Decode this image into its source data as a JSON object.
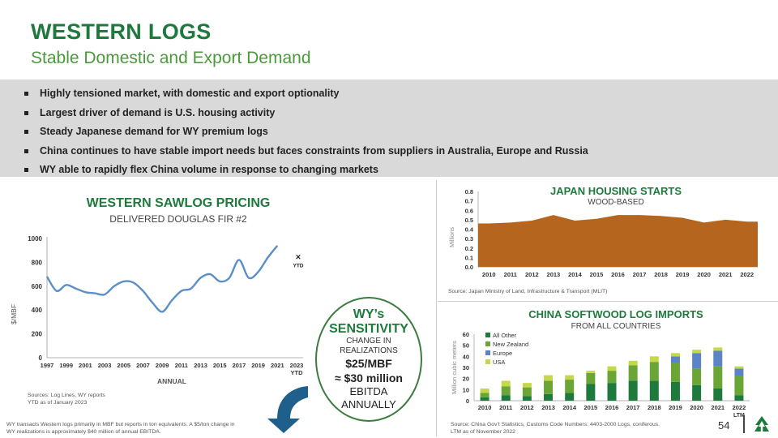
{
  "header": {
    "title": "WESTERN LOGS",
    "subtitle": "Stable Domestic and Export Demand"
  },
  "bullets": [
    "Highly tensioned market, with domestic and export optionality",
    "Largest driver of demand is U.S. housing activity",
    "Steady Japanese demand for WY premium logs",
    "China continues to have stable import needs but faces constraints from suppliers in Australia, Europe and Russia",
    "WY able to rapidly flex China volume in response to changing markets"
  ],
  "sawlog": {
    "title": "WESTERN SAWLOG PRICING",
    "subtitle": "DELIVERED DOUGLAS FIR #2",
    "ytd_marker": "×",
    "ytd_label": "YTD",
    "sources": "Sources: Log Lines, WY reports",
    "ytd_note": "YTD as of January 2023"
  },
  "sensitivity": {
    "line1": "WY’s",
    "line2": "SENSITIVITY",
    "line3": "CHANGE IN REALIZATIONS",
    "line4": "$25/MBF",
    "line5": "≈ $30 million",
    "line6": "EBITDA",
    "line7": "ANNUALLY"
  },
  "japan": {
    "title": "JAPAN HOUSING STARTS",
    "subtitle": "WOOD-BASED",
    "source": "Source: Japan Ministry of Land, Infrastructure & Transport (MLIT)"
  },
  "china": {
    "title": "CHINA SOFTWOOD LOG IMPORTS",
    "subtitle": "FROM ALL COUNTRIES",
    "source_line1": "Source: China Gov’t Statistics, Customs Code Numbers: 4403-2000 Logs, coniferous.",
    "source_line2": "LTM as of November 2022"
  },
  "footnote": {
    "line1": "WY transacts Western logs primarily in MBF but reports in ton equivalents. A $5/ton change in",
    "line2": "WY realizations is approximately $40 million of annual EBITDA."
  },
  "page": {
    "number": "54"
  },
  "colors": {
    "green": "#1e7a3c",
    "line_blue": "#5b8fc9",
    "japan_fill": "#b5651d",
    "all_other": "#1e7a3c",
    "new_zealand": "#6aa535",
    "europe": "#5b84c4",
    "usa": "#c5d84b"
  },
  "chart_data": [
    {
      "type": "line",
      "title": "WESTERN SAWLOG PRICING",
      "subtitle": "DELIVERED DOUGLAS FIR #2",
      "xlabel": "ANNUAL",
      "ylabel": "$/MBF",
      "ylim": [
        0,
        1000
      ],
      "yticks": [
        0,
        200,
        400,
        600,
        800,
        1000
      ],
      "xtick_labels": [
        "1997",
        "1999",
        "2001",
        "2003",
        "2005",
        "2007",
        "2009",
        "2011",
        "2013",
        "2015",
        "2017",
        "2019",
        "2021",
        "2023"
      ],
      "xtick_sub": "YTD",
      "x": [
        1997,
        1998,
        1999,
        2000,
        2001,
        2002,
        2003,
        2004,
        2005,
        2006,
        2007,
        2008,
        2009,
        2010,
        2011,
        2012,
        2013,
        2014,
        2015,
        2016,
        2017,
        2018,
        2019,
        2020,
        2021,
        2022
      ],
      "values": [
        680,
        560,
        610,
        580,
        550,
        540,
        530,
        600,
        640,
        630,
        560,
        460,
        385,
        480,
        560,
        580,
        670,
        700,
        640,
        670,
        820,
        670,
        720,
        840,
        940,
        null
      ],
      "ytd_point": {
        "x": 2023,
        "y": 840
      }
    },
    {
      "type": "area",
      "title": "JAPAN HOUSING STARTS",
      "subtitle": "WOOD-BASED",
      "ylabel": "Millions",
      "ylim": [
        0,
        0.8
      ],
      "yticks": [
        0.0,
        0.1,
        0.2,
        0.3,
        0.4,
        0.5,
        0.6,
        0.7,
        0.8
      ],
      "categories": [
        "2010",
        "2011",
        "2012",
        "2013",
        "2014",
        "2015",
        "2016",
        "2017",
        "2018",
        "2019",
        "2020",
        "2021",
        "2022"
      ],
      "values": [
        0.46,
        0.47,
        0.49,
        0.55,
        0.49,
        0.51,
        0.55,
        0.55,
        0.54,
        0.52,
        0.47,
        0.5,
        0.48
      ]
    },
    {
      "type": "bar",
      "stacked": true,
      "title": "CHINA SOFTWOOD LOG IMPORTS",
      "subtitle": "FROM ALL COUNTRIES",
      "ylabel": "Million cubic meters",
      "ylim": [
        0,
        60
      ],
      "yticks": [
        0,
        10,
        20,
        30,
        40,
        50,
        60
      ],
      "categories": [
        "2010",
        "2011",
        "2012",
        "2013",
        "2014",
        "2015",
        "2016",
        "2017",
        "2018",
        "2019",
        "2020",
        "2021",
        "2022"
      ],
      "category_sub": [
        "",
        "",
        "",
        "",
        "",
        "",
        "",
        "",
        "",
        "",
        "",
        "",
        "LTM"
      ],
      "series": [
        {
          "name": "All Other",
          "values": [
            3,
            5,
            4,
            6,
            7,
            15,
            16,
            18,
            18,
            17,
            14,
            11,
            5
          ]
        },
        {
          "name": "New Zealand",
          "values": [
            4,
            8,
            8,
            12,
            12,
            10,
            11,
            14,
            17,
            17,
            15,
            20,
            17
          ]
        },
        {
          "name": "Europe",
          "values": [
            0,
            0,
            0,
            0,
            0,
            0,
            0,
            0,
            0,
            6,
            14,
            14,
            7
          ]
        },
        {
          "name": "USA",
          "values": [
            4,
            5,
            4,
            5,
            4,
            2,
            4,
            4,
            5,
            3,
            3,
            3,
            2
          ]
        }
      ]
    }
  ]
}
